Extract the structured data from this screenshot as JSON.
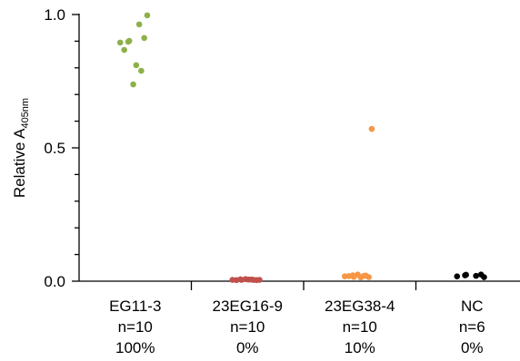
{
  "chart_data": {
    "type": "strip",
    "ylabel": "Relative A",
    "ylabel_subscript": "405nm",
    "ylim": [
      0,
      1.0
    ],
    "yticks": [
      {
        "value": 0,
        "label": "0.0"
      },
      {
        "value": 0.5,
        "label": "0.5"
      },
      {
        "value": 1.0,
        "label": "1.0"
      }
    ],
    "yminor_ticks": [
      0.1,
      0.2,
      0.3,
      0.4,
      0.6,
      0.7,
      0.8,
      0.9
    ],
    "groups": [
      {
        "name": "EG11-3",
        "n_label": "n=10",
        "percent_label": "100%",
        "color": "#8db04a",
        "values": [
          0.997,
          0.963,
          0.912,
          0.895,
          0.898,
          0.901,
          0.867,
          0.81,
          0.789,
          0.738
        ]
      },
      {
        "name": "23EG16-9",
        "n_label": "n=10",
        "percent_label": "0%",
        "color": "#c0504d",
        "values": [
          0.005,
          0.006,
          0.004,
          0.005,
          0.007,
          0.005,
          0.004,
          0.006,
          0.005,
          0.008
        ]
      },
      {
        "name": "23EG38-4",
        "n_label": "n=10",
        "percent_label": "10%",
        "color": "#f79646",
        "values": [
          0.571,
          0.02,
          0.015,
          0.018,
          0.022,
          0.016,
          0.019,
          0.014,
          0.021,
          0.025
        ]
      },
      {
        "name": "NC",
        "n_label": "n=6",
        "percent_label": "0%",
        "color": "#000000",
        "values": [
          0.015,
          0.02,
          0.025,
          0.018,
          0.022,
          0.024
        ]
      }
    ]
  }
}
